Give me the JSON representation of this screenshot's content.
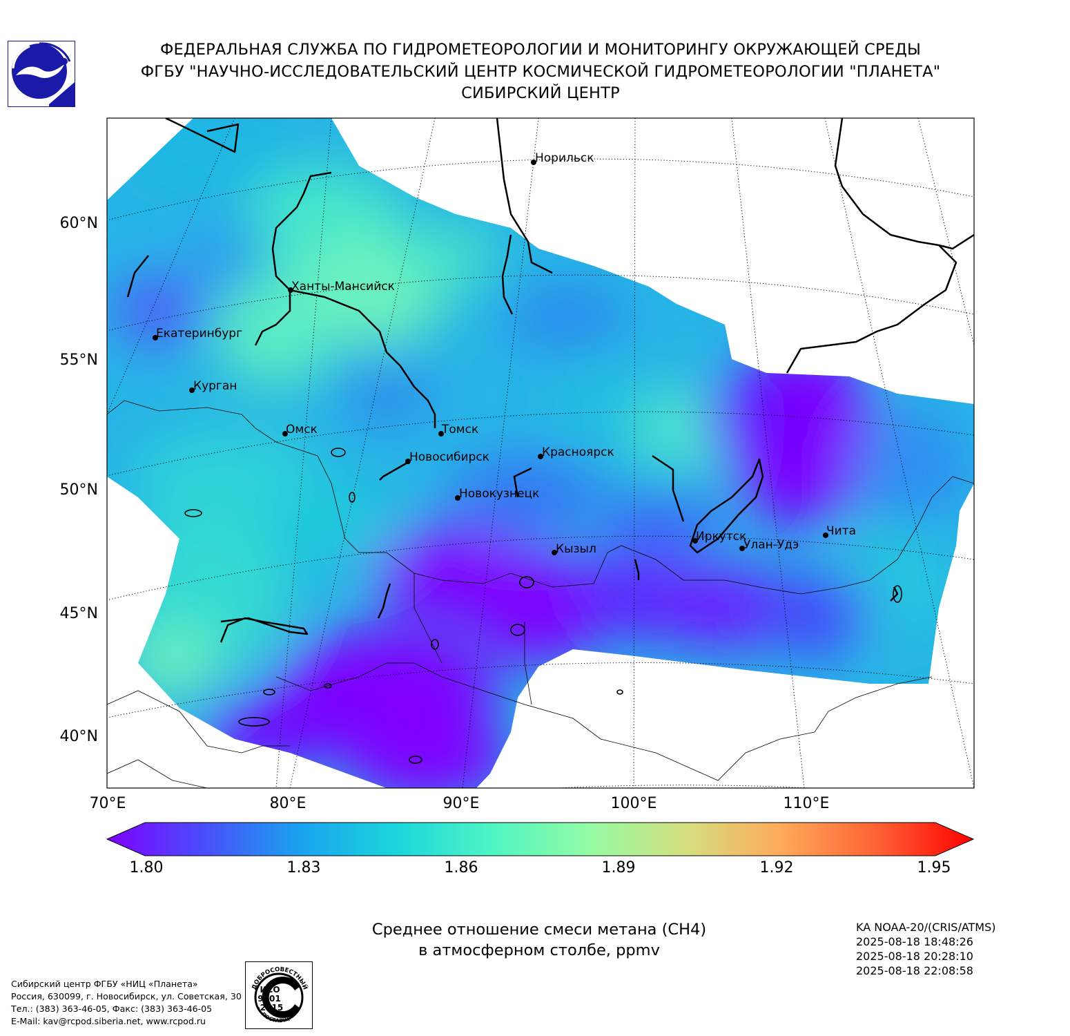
{
  "header": {
    "line1": "ФЕДЕРАЛЬНАЯ СЛУЖБА ПО ГИДРОМЕТЕОРОЛОГИИ И МОНИТОРИНГУ ОКРУЖАЮЩЕЙ СРЕДЫ",
    "line2": "ФГБУ \"НАУЧНО-ИССЛЕДОВАТЕЛЬСКИЙ ЦЕНТР КОСМИЧЕСКОЙ ГИДРОМЕТЕОРОЛОГИИ \"ПЛАНЕТА\"",
    "line3": "СИБИРСКИЙ ЦЕНТР"
  },
  "map": {
    "lat_labels": [
      "60°N",
      "55°N",
      "50°N",
      "45°N",
      "40°N"
    ],
    "lon_labels": [
      "70°E",
      "80°E",
      "90°E",
      "100°E",
      "110°E"
    ],
    "cities": [
      {
        "name": "Норильск"
      },
      {
        "name": "Ханты-Мансийск"
      },
      {
        "name": "Екатеринбург"
      },
      {
        "name": "Курган"
      },
      {
        "name": "Омск"
      },
      {
        "name": "Томск"
      },
      {
        "name": "Новосибирск"
      },
      {
        "name": "Красноярск"
      },
      {
        "name": "Новокузнецк"
      },
      {
        "name": "Иркутск"
      },
      {
        "name": "Улан-Удэ"
      },
      {
        "name": "Чита"
      },
      {
        "name": "Кызыл"
      }
    ],
    "colors": {
      "low": "#7f00ff",
      "mid_low": "#2aa7ec",
      "mid": "#18d6d6",
      "mid_high": "#7dfcb0",
      "high": "#ff0000"
    }
  },
  "colorbar": {
    "min": 1.8,
    "max": 1.95,
    "ticks": [
      "1.80",
      "1.83",
      "1.86",
      "1.89",
      "1.92",
      "1.95"
    ],
    "stops": [
      "#7f00ff",
      "#4a4dfb",
      "#1aa2f0",
      "#1ad6dc",
      "#4ff5c4",
      "#93fba4",
      "#d4df7f",
      "#ffaa5a",
      "#ff6234",
      "#ff0000"
    ]
  },
  "caption": {
    "line1": "Среднее отношение смеси метана (CH4)",
    "line2": "в атмосферном столбе, ppmv"
  },
  "satellite": {
    "name": "KA NOAA-20/(CRIS/ATMS)",
    "passes": [
      "2025-08-18 18:48:26",
      "2025-08-18 20:28:10",
      "2025-08-18 22:08:58"
    ]
  },
  "contact": {
    "line1": "Сибирский центр ФГБУ «НИЦ «Планета»",
    "line2": "Россия, 630099, г. Новосибирск, ул. Советская, 30",
    "line3": "Тел.: (383) 363-46-05, Факс: (383) 363-46-05",
    "line4": "E-Mail: kav@rcpod.siberia.net, www.rcpod.ru"
  },
  "iso_badge": {
    "top_text": "ДОБРОСОВЕСТНЫЙ",
    "bottom_text": "ПОСТАВЩИК",
    "lines": [
      "ИСО",
      "9001",
      "-2015"
    ]
  }
}
